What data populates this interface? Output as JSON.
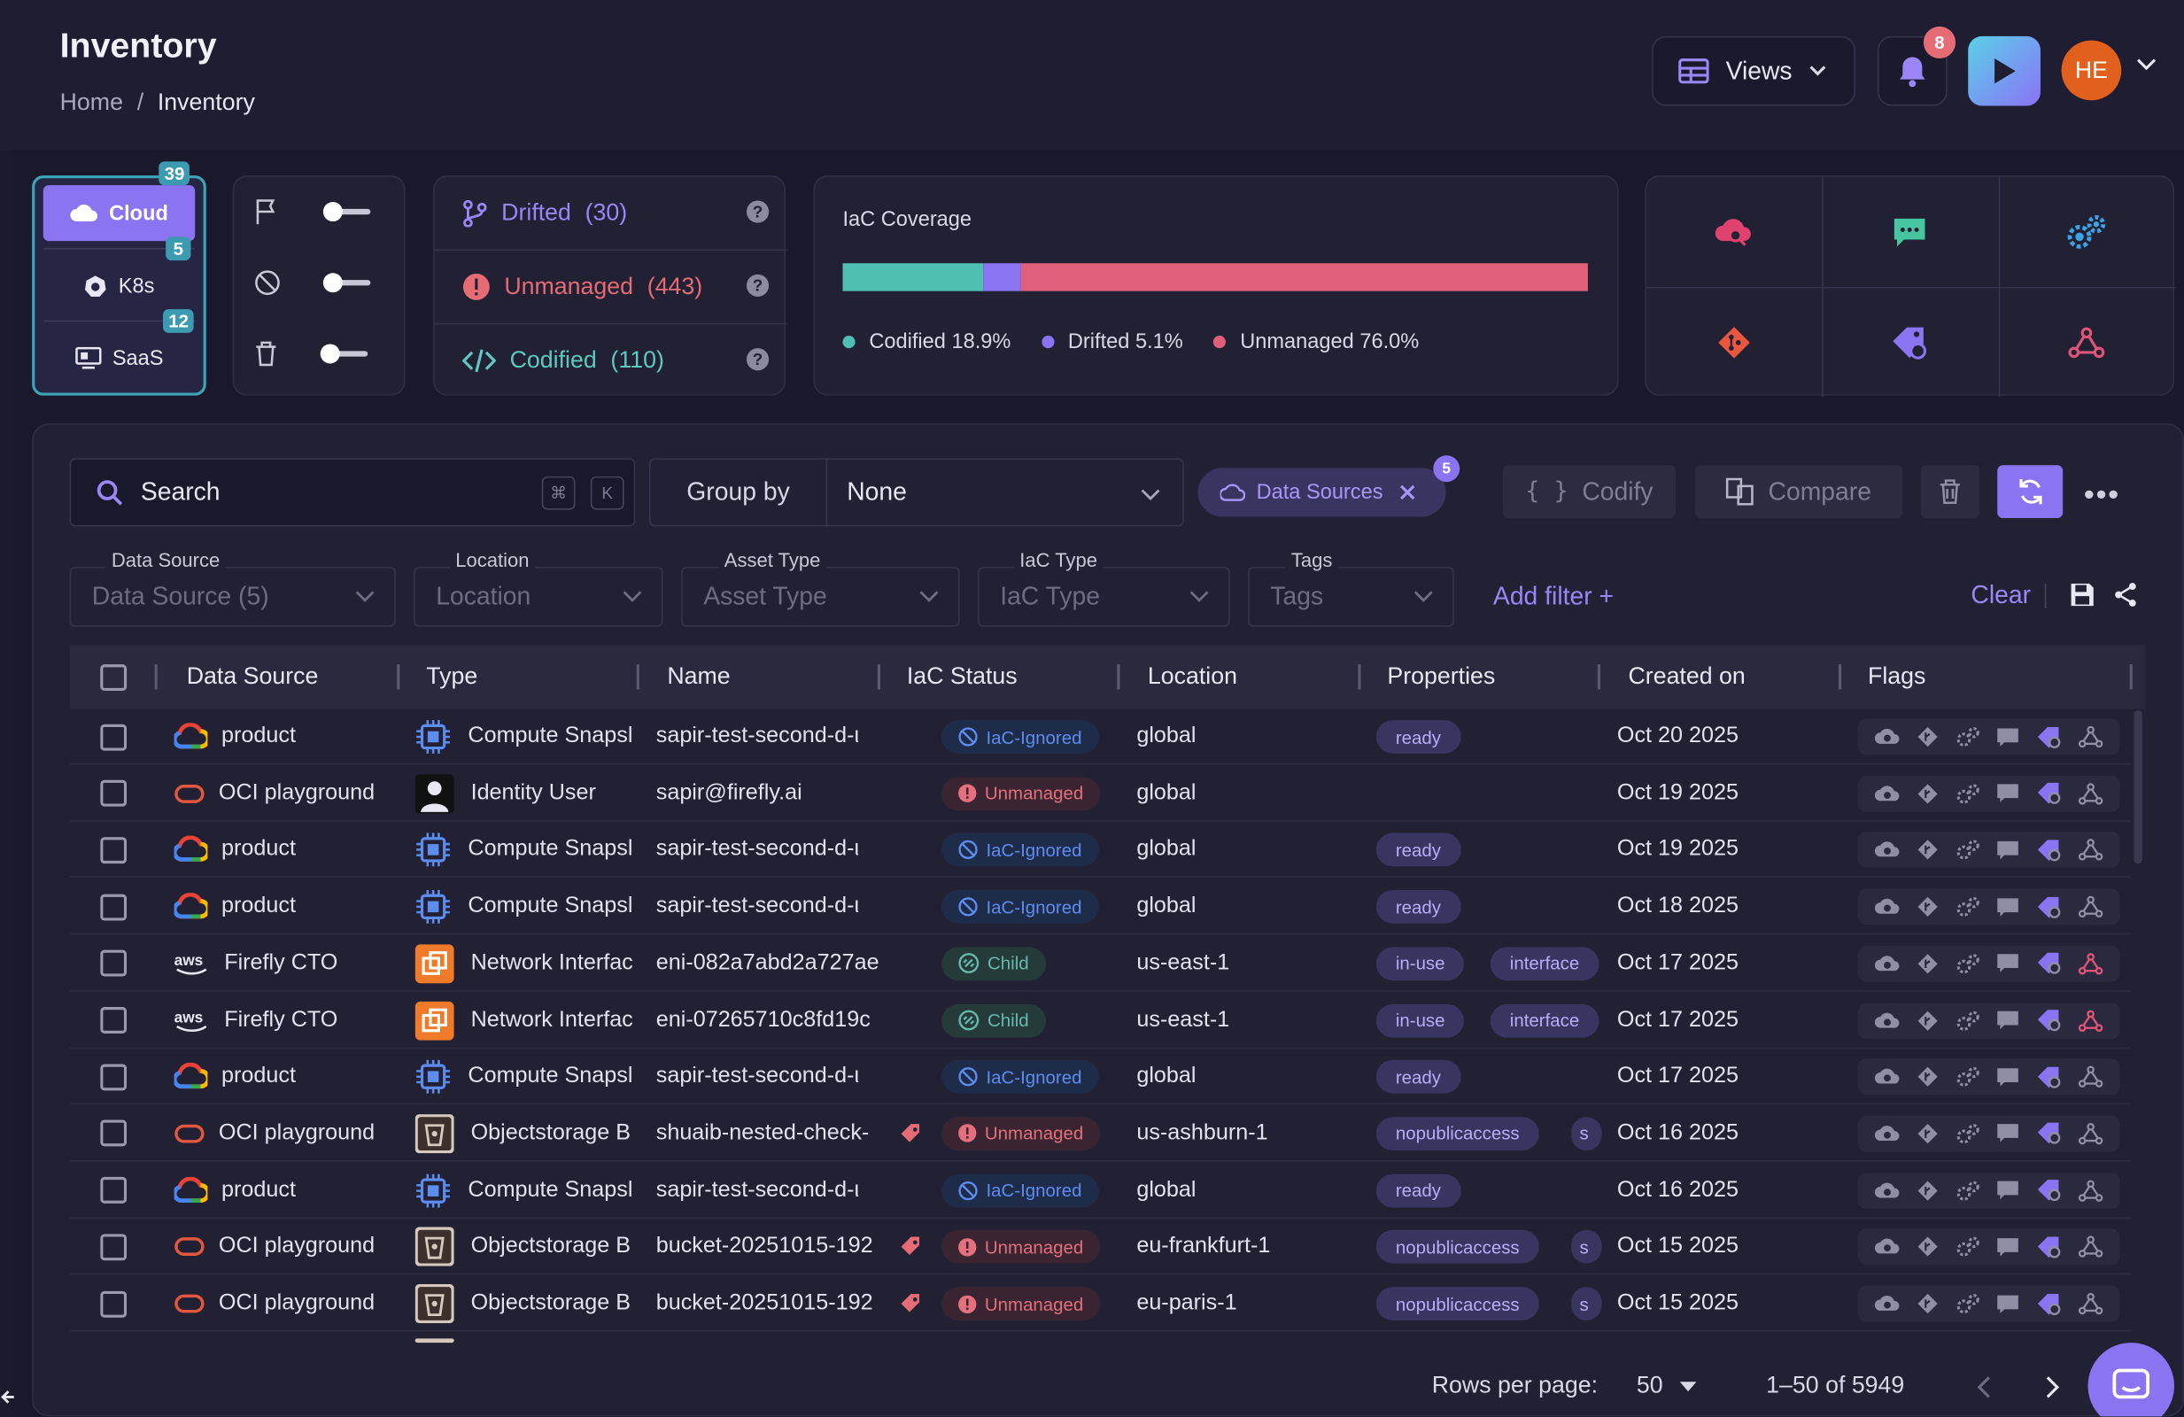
{
  "header": {
    "title": "Inventory",
    "breadcrumb": [
      "Home",
      "Inventory"
    ],
    "views_label": "Views",
    "notif_count": "8",
    "avatar_initials": "HE"
  },
  "providers": [
    {
      "label": "Cloud",
      "count": "39",
      "active": true,
      "icon": "cloud-icon"
    },
    {
      "label": "K8s",
      "count": "5",
      "active": false,
      "icon": "kubernetes-icon"
    },
    {
      "label": "SaaS",
      "count": "12",
      "active": false,
      "icon": "saas-icon"
    }
  ],
  "toggles": [
    {
      "icon": "flag-icon"
    },
    {
      "icon": "ignored-icon"
    },
    {
      "icon": "trash-icon"
    }
  ],
  "status": [
    {
      "label": "Drifted",
      "count": "(30)",
      "color": "#9b86f7",
      "icon": "branch-icon"
    },
    {
      "label": "Unmanaged",
      "count": "(443)",
      "color": "#e56b75",
      "icon": "alert-icon"
    },
    {
      "label": "Codified",
      "count": "(110)",
      "color": "#5dc9c0",
      "icon": "code-icon"
    }
  ],
  "coverage": {
    "title": "IaC Coverage",
    "segments": [
      {
        "label": "Codified",
        "pct": 18.9,
        "pct_text": "18.9%",
        "color": "#4fbfb3"
      },
      {
        "label": "Drifted",
        "pct": 5.1,
        "pct_text": "5.1%",
        "color": "#8b74f2"
      },
      {
        "label": "Unmanaged",
        "pct": 76.0,
        "pct_text": "76.0%",
        "color": "#e0607b"
      }
    ]
  },
  "quick_icons": [
    "cloud-search-icon",
    "chat-icon",
    "gears-icon",
    "git-icon",
    "tag-icon",
    "graph-icon"
  ],
  "toolbar": {
    "search_placeholder": "Search",
    "kbd1": "⌘",
    "kbd2": "K",
    "groupby_label": "Group by",
    "groupby_value": "None",
    "chip_label": "Data Sources",
    "chip_count": "5",
    "codify_label": "Codify",
    "compare_label": "Compare"
  },
  "filters": [
    {
      "label": "Data Source",
      "value": "Data Source (5)"
    },
    {
      "label": "Location",
      "value": "Location"
    },
    {
      "label": "Asset Type",
      "value": "Asset Type"
    },
    {
      "label": "IaC Type",
      "value": "IaC Type"
    },
    {
      "label": "Tags",
      "value": "Tags"
    }
  ],
  "add_filter": "Add filter +",
  "clear_label": "Clear",
  "columns": [
    "Data Source",
    "Type",
    "Name",
    "IaC Status",
    "Location",
    "Properties",
    "Created on",
    "Flags"
  ],
  "rows": [
    {
      "ds": "product",
      "ds_kind": "gcp",
      "type": "Compute Snapsl",
      "type_kind": "chip",
      "name": "sapir-test-second-d-ι",
      "tag": false,
      "status": "IaC-Ignored",
      "status_kind": "ign",
      "location": "global",
      "props": [
        "ready"
      ],
      "created": "Oct 20 2025",
      "graph_hl": false
    },
    {
      "ds": "OCI playground",
      "ds_kind": "oci",
      "type": "Identity User",
      "type_kind": "user",
      "name": "sapir@firefly.ai",
      "tag": false,
      "status": "Unmanaged",
      "status_kind": "unm",
      "location": "global",
      "props": [],
      "created": "Oct 19 2025",
      "graph_hl": false
    },
    {
      "ds": "product",
      "ds_kind": "gcp",
      "type": "Compute Snapsl",
      "type_kind": "chip",
      "name": "sapir-test-second-d-ι",
      "tag": false,
      "status": "IaC-Ignored",
      "status_kind": "ign",
      "location": "global",
      "props": [
        "ready"
      ],
      "created": "Oct 19 2025",
      "graph_hl": false
    },
    {
      "ds": "product",
      "ds_kind": "gcp",
      "type": "Compute Snapsl",
      "type_kind": "chip",
      "name": "sapir-test-second-d-ι",
      "tag": false,
      "status": "IaC-Ignored",
      "status_kind": "ign",
      "location": "global",
      "props": [
        "ready"
      ],
      "created": "Oct 18 2025",
      "graph_hl": false
    },
    {
      "ds": "Firefly CTO",
      "ds_kind": "aws",
      "type": "Network Interfac",
      "type_kind": "net",
      "name": "eni-082a7abd2a727ae",
      "tag": false,
      "status": "Child",
      "status_kind": "chd",
      "location": "us-east-1",
      "props": [
        "in-use",
        "interface"
      ],
      "created": "Oct 17 2025",
      "graph_hl": true
    },
    {
      "ds": "Firefly CTO",
      "ds_kind": "aws",
      "type": "Network Interfac",
      "type_kind": "net",
      "name": "eni-07265710c8fd19c",
      "tag": false,
      "status": "Child",
      "status_kind": "chd",
      "location": "us-east-1",
      "props": [
        "in-use",
        "interface"
      ],
      "created": "Oct 17 2025",
      "graph_hl": true
    },
    {
      "ds": "product",
      "ds_kind": "gcp",
      "type": "Compute Snapsl",
      "type_kind": "chip",
      "name": "sapir-test-second-d-ι",
      "tag": false,
      "status": "IaC-Ignored",
      "status_kind": "ign",
      "location": "global",
      "props": [
        "ready"
      ],
      "created": "Oct 17 2025",
      "graph_hl": false
    },
    {
      "ds": "OCI playground",
      "ds_kind": "oci",
      "type": "Objectstorage B",
      "type_kind": "bucket",
      "name": "shuaib-nested-check-",
      "tag": true,
      "status": "Unmanaged",
      "status_kind": "unm",
      "location": "us-ashburn-1",
      "props": [
        "nopublicaccess",
        "s"
      ],
      "created": "Oct 16 2025",
      "graph_hl": false
    },
    {
      "ds": "product",
      "ds_kind": "gcp",
      "type": "Compute Snapsl",
      "type_kind": "chip",
      "name": "sapir-test-second-d-ι",
      "tag": false,
      "status": "IaC-Ignored",
      "status_kind": "ign",
      "location": "global",
      "props": [
        "ready"
      ],
      "created": "Oct 16 2025",
      "graph_hl": false
    },
    {
      "ds": "OCI playground",
      "ds_kind": "oci",
      "type": "Objectstorage B",
      "type_kind": "bucket",
      "name": "bucket-20251015-192",
      "tag": true,
      "status": "Unmanaged",
      "status_kind": "unm",
      "location": "eu-frankfurt-1",
      "props": [
        "nopublicaccess",
        "s"
      ],
      "created": "Oct 15 2025",
      "graph_hl": false
    },
    {
      "ds": "OCI playground",
      "ds_kind": "oci",
      "type": "Objectstorage B",
      "type_kind": "bucket",
      "name": "bucket-20251015-192",
      "tag": true,
      "status": "Unmanaged",
      "status_kind": "unm",
      "location": "eu-paris-1",
      "props": [
        "nopublicaccess",
        "s"
      ],
      "created": "Oct 15 2025",
      "graph_hl": false
    }
  ],
  "pagination": {
    "rows_label": "Rows per page:",
    "rows_value": "50",
    "range": "1–50 of 5949"
  }
}
